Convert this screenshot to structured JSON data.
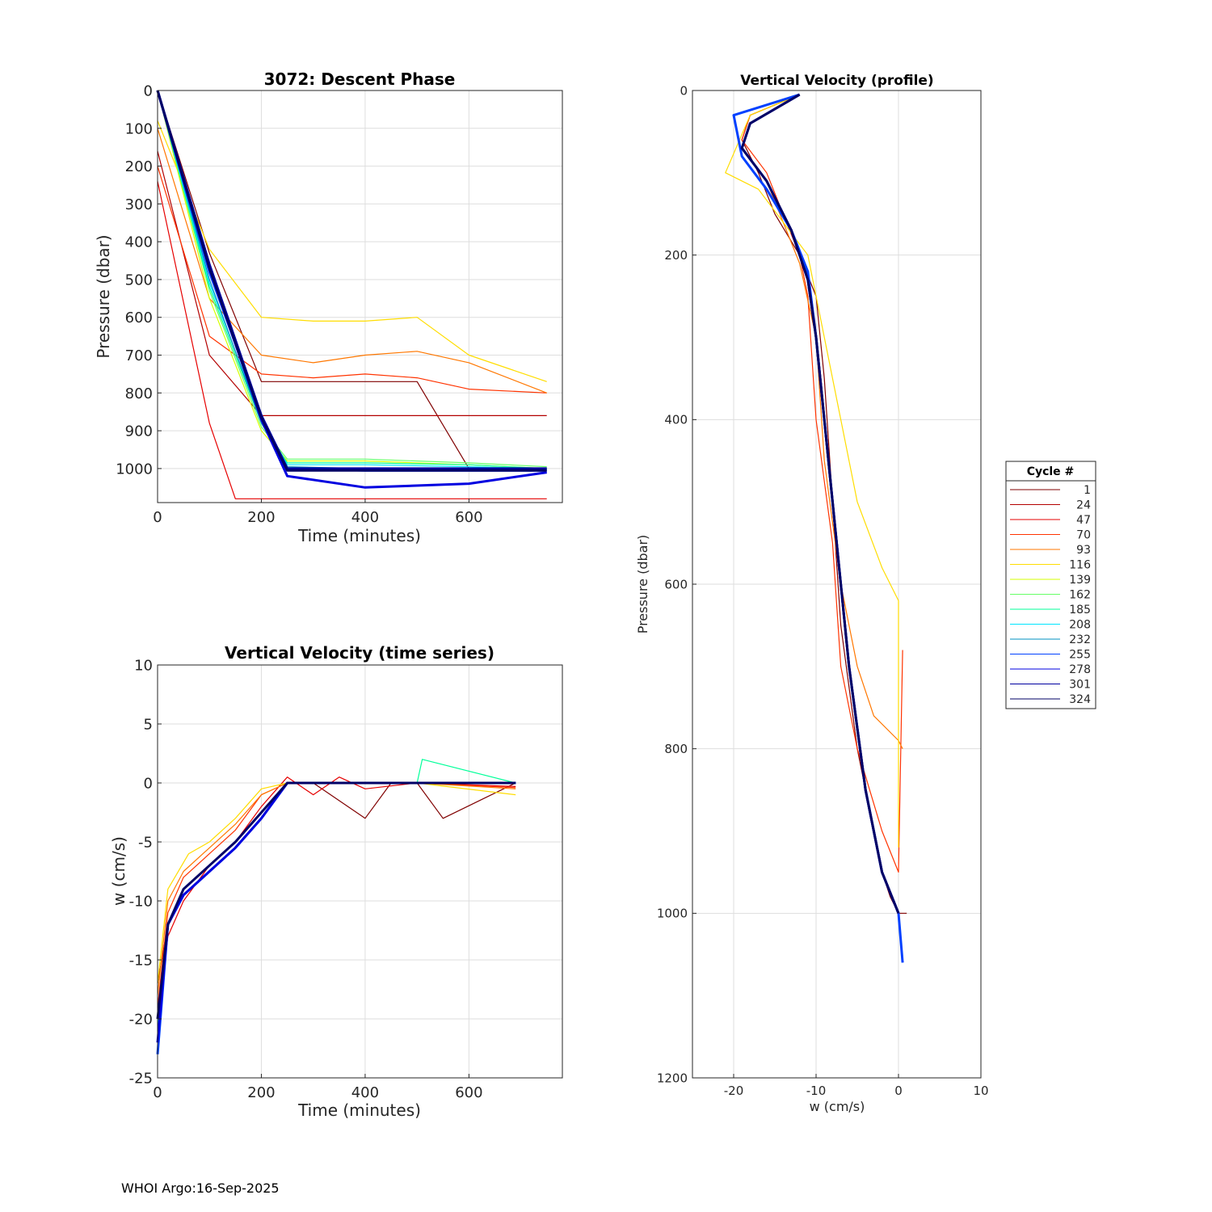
{
  "footer": "WHOI Argo:16-Sep-2025",
  "legend": {
    "title": "Cycle #",
    "entries": [
      "1",
      "24",
      "47",
      "70",
      "93",
      "116",
      "139",
      "162",
      "185",
      "208",
      "232",
      "255",
      "278",
      "301",
      "324"
    ],
    "colors": [
      "#800000",
      "#b30000",
      "#e60000",
      "#ff3300",
      "#ff7700",
      "#ffdd00",
      "#d6ff00",
      "#66ff66",
      "#00ff99",
      "#00e5ff",
      "#0090c0",
      "#0040ff",
      "#0000e0",
      "#0000a0",
      "#000066"
    ]
  },
  "chart_data": [
    {
      "id": "descent",
      "type": "line",
      "title": "3072: Descent Phase",
      "xlabel": "Time (minutes)",
      "ylabel": "Pressure (dbar)",
      "xlim": [
        0,
        780
      ],
      "ylim": [
        1090,
        0
      ],
      "xticks": [
        "0",
        "200",
        "400",
        "600"
      ],
      "yticks": [
        "0",
        "100",
        "200",
        "300",
        "400",
        "500",
        "600",
        "700",
        "800",
        "900",
        "1000"
      ],
      "grid": true,
      "series": [
        {
          "name": "1",
          "color": "#800000",
          "x": [
            0,
            100,
            200,
            300,
            400,
            500,
            600,
            750
          ],
          "y": [
            0,
            430,
            770,
            770,
            770,
            770,
            1000,
            1000
          ]
        },
        {
          "name": "24",
          "color": "#b30000",
          "x": [
            0,
            100,
            200,
            300,
            400,
            500,
            600,
            750
          ],
          "y": [
            160,
            700,
            860,
            860,
            860,
            860,
            860,
            860
          ]
        },
        {
          "name": "47",
          "color": "#e60000",
          "x": [
            0,
            100,
            150,
            200,
            300,
            400,
            500,
            600,
            750
          ],
          "y": [
            240,
            880,
            1080,
            1080,
            1080,
            1080,
            1080,
            1080,
            1080
          ]
        },
        {
          "name": "70",
          "color": "#ff3300",
          "x": [
            0,
            100,
            200,
            300,
            400,
            500,
            600,
            750
          ],
          "y": [
            200,
            650,
            750,
            760,
            750,
            760,
            790,
            800
          ]
        },
        {
          "name": "93",
          "color": "#ff7700",
          "x": [
            0,
            100,
            200,
            300,
            400,
            500,
            600,
            750
          ],
          "y": [
            100,
            550,
            700,
            720,
            700,
            690,
            720,
            800
          ]
        },
        {
          "name": "116",
          "color": "#ffdd00",
          "x": [
            0,
            100,
            200,
            300,
            400,
            500,
            600,
            750
          ],
          "y": [
            80,
            420,
            600,
            610,
            610,
            600,
            700,
            770
          ]
        },
        {
          "name": "139",
          "color": "#d6ff00",
          "x": [
            0,
            100,
            200,
            250,
            400,
            600,
            750
          ],
          "y": [
            0,
            550,
            900,
            980,
            980,
            990,
            1000
          ]
        },
        {
          "name": "162",
          "color": "#66ff66",
          "x": [
            0,
            100,
            200,
            250,
            400,
            600,
            750
          ],
          "y": [
            0,
            530,
            890,
            975,
            975,
            985,
            995
          ]
        },
        {
          "name": "185",
          "color": "#00ff99",
          "x": [
            0,
            100,
            200,
            250,
            400,
            600,
            750
          ],
          "y": [
            0,
            520,
            880,
            985,
            985,
            990,
            1000
          ]
        },
        {
          "name": "208",
          "color": "#00e5ff",
          "x": [
            0,
            100,
            200,
            250,
            400,
            600,
            750
          ],
          "y": [
            0,
            510,
            870,
            990,
            990,
            995,
            1000
          ]
        },
        {
          "name": "232",
          "color": "#0090c0",
          "x": [
            0,
            100,
            200,
            250,
            400,
            600,
            750
          ],
          "y": [
            0,
            500,
            880,
            995,
            1000,
            1000,
            1005
          ]
        },
        {
          "name": "255",
          "color": "#0040ff",
          "x": [
            0,
            100,
            200,
            250,
            400,
            600,
            750
          ],
          "y": [
            0,
            480,
            860,
            1000,
            1005,
            1005,
            1005
          ]
        },
        {
          "name": "278",
          "color": "#0000e0",
          "x": [
            0,
            100,
            200,
            250,
            400,
            600,
            750
          ],
          "y": [
            0,
            470,
            870,
            1020,
            1050,
            1040,
            1010
          ]
        },
        {
          "name": "301",
          "color": "#0000a0",
          "x": [
            0,
            100,
            200,
            250,
            400,
            600,
            750
          ],
          "y": [
            0,
            460,
            860,
            1000,
            1000,
            1000,
            1000
          ]
        },
        {
          "name": "324",
          "color": "#000066",
          "x": [
            0,
            100,
            200,
            250,
            400,
            600,
            750
          ],
          "y": [
            0,
            470,
            865,
            1005,
            1005,
            1005,
            1005
          ]
        }
      ]
    },
    {
      "id": "wtime",
      "type": "line",
      "title": "Vertical Velocity (time series)",
      "xlabel": "Time (minutes)",
      "ylabel": "w (cm/s)",
      "xlim": [
        0,
        780
      ],
      "ylim": [
        -25,
        10
      ],
      "xticks": [
        "0",
        "200",
        "400",
        "600"
      ],
      "yticks": [
        "10",
        "5",
        "0",
        "-5",
        "-10",
        "-15",
        "-20",
        "-25"
      ],
      "grid": true,
      "series": [
        {
          "name": "1",
          "color": "#800000",
          "x": [
            0,
            20,
            50,
            100,
            150,
            200,
            250,
            300,
            400,
            450,
            500,
            550,
            690
          ],
          "y": [
            -17,
            -12,
            -9,
            -7,
            -5,
            -2.5,
            0,
            0,
            -3,
            0,
            0,
            -3,
            0
          ]
        },
        {
          "name": "47",
          "color": "#e60000",
          "x": [
            0,
            20,
            50,
            100,
            150,
            200,
            250,
            300,
            350,
            400,
            500,
            690
          ],
          "y": [
            -20,
            -13,
            -10,
            -7,
            -5,
            -2,
            0.5,
            -1,
            0.5,
            -0.5,
            0,
            -0.3
          ]
        },
        {
          "name": "70",
          "color": "#ff3300",
          "x": [
            0,
            20,
            50,
            100,
            150,
            200,
            250,
            300,
            400,
            500,
            690
          ],
          "y": [
            -19,
            -11,
            -8,
            -6,
            -4,
            -1,
            0,
            0,
            0,
            0,
            -0.4
          ]
        },
        {
          "name": "93",
          "color": "#ff7700",
          "x": [
            0,
            20,
            50,
            100,
            150,
            200,
            250,
            300,
            400,
            500,
            690
          ],
          "y": [
            -18,
            -10,
            -7.5,
            -5.5,
            -3.5,
            -1,
            0,
            0,
            0,
            0,
            -0.5
          ]
        },
        {
          "name": "116",
          "color": "#ffdd00",
          "x": [
            0,
            20,
            60,
            100,
            150,
            200,
            250,
            300,
            400,
            500,
            690
          ],
          "y": [
            -17,
            -9,
            -6,
            -5,
            -3,
            -0.5,
            0,
            0,
            0,
            0,
            -1
          ]
        },
        {
          "name": "185",
          "color": "#00ff99",
          "x": [
            0,
            20,
            50,
            100,
            150,
            200,
            250,
            300,
            400,
            500,
            510,
            690
          ],
          "y": [
            -21,
            -12,
            -9,
            -7,
            -5,
            -2.5,
            0,
            0,
            0,
            0,
            2,
            0
          ]
        },
        {
          "name": "208",
          "color": "#00e5ff",
          "x": [
            0,
            20,
            50,
            100,
            150,
            200,
            250,
            300,
            400,
            500,
            690
          ],
          "y": [
            -21,
            -12,
            -9,
            -7,
            -5,
            -2.5,
            0,
            0,
            0,
            0,
            0
          ]
        },
        {
          "name": "255",
          "color": "#0040ff",
          "x": [
            0,
            20,
            50,
            100,
            150,
            200,
            250,
            300,
            400,
            500,
            690
          ],
          "y": [
            -23,
            -12,
            -9.5,
            -7.5,
            -5.5,
            -3,
            0,
            0,
            0,
            0,
            0
          ]
        },
        {
          "name": "278",
          "color": "#0000e0",
          "x": [
            0,
            20,
            50,
            100,
            150,
            200,
            250,
            300,
            400,
            500,
            690
          ],
          "y": [
            -22,
            -12,
            -9.5,
            -7.5,
            -5.5,
            -3,
            0,
            0,
            0,
            0,
            0
          ]
        },
        {
          "name": "324",
          "color": "#000066",
          "x": [
            0,
            20,
            50,
            100,
            150,
            200,
            250,
            300,
            400,
            500,
            690
          ],
          "y": [
            -20,
            -12,
            -9,
            -7,
            -5,
            -2.5,
            0,
            0,
            0,
            0,
            0
          ]
        }
      ]
    },
    {
      "id": "wprofile",
      "type": "line",
      "title": "Vertical Velocity (profile)",
      "xlabel": "w (cm/s)",
      "ylabel": "Pressure (dbar)",
      "xlim": [
        -25,
        10
      ],
      "ylim": [
        1200,
        0
      ],
      "xticks": [
        "-20",
        "-10",
        "0",
        "10"
      ],
      "yticks": [
        "0",
        "200",
        "400",
        "600",
        "800",
        "1000",
        "1200"
      ],
      "grid": true,
      "series": [
        {
          "name": "1",
          "color": "#800000",
          "x": [
            -12,
            -18,
            -19,
            -17,
            -15,
            -12,
            -10,
            -9,
            -8,
            -7,
            -5,
            -3,
            -2,
            -1,
            0,
            1
          ],
          "y": [
            5,
            30,
            60,
            100,
            150,
            200,
            250,
            350,
            500,
            650,
            800,
            900,
            950,
            980,
            1000,
            1000
          ]
        },
        {
          "name": "70",
          "color": "#ff3300",
          "x": [
            -12,
            -18,
            -19,
            -16,
            -14,
            -12,
            -11,
            -10,
            -8,
            -7,
            -5,
            -2,
            0,
            0.5
          ],
          "y": [
            5,
            30,
            60,
            100,
            150,
            200,
            250,
            400,
            550,
            700,
            800,
            900,
            950,
            680
          ]
        },
        {
          "name": "93",
          "color": "#ff7700",
          "x": [
            -12,
            -18,
            -19,
            -16,
            -14,
            -12,
            -10,
            -9,
            -7,
            -5,
            -3,
            0,
            0.5
          ],
          "y": [
            5,
            40,
            70,
            110,
            160,
            210,
            300,
            450,
            600,
            700,
            760,
            790,
            800
          ]
        },
        {
          "name": "116",
          "color": "#ffdd00",
          "x": [
            -12,
            -18,
            -21,
            -17,
            -11,
            -9,
            -7,
            -5,
            -2,
            0,
            0
          ],
          "y": [
            5,
            30,
            100,
            120,
            200,
            300,
            400,
            500,
            580,
            620,
            920
          ]
        },
        {
          "name": "162",
          "color": "#66ff66",
          "x": [
            -12,
            -18,
            -19,
            -16,
            -13,
            -11,
            -10,
            -8,
            -6,
            -4,
            -2,
            0
          ],
          "y": [
            5,
            40,
            70,
            110,
            170,
            230,
            300,
            500,
            700,
            850,
            950,
            1000
          ]
        },
        {
          "name": "208",
          "color": "#00e5ff",
          "x": [
            -12,
            -18,
            -19,
            -16,
            -13,
            -11,
            -10,
            -8,
            -6,
            -4,
            -2,
            0
          ],
          "y": [
            5,
            40,
            70,
            110,
            170,
            230,
            300,
            500,
            700,
            850,
            950,
            1000
          ]
        },
        {
          "name": "255",
          "color": "#0040ff",
          "x": [
            -12,
            -20,
            -19,
            -16,
            -13,
            -11,
            -10,
            -8,
            -6,
            -4,
            -2,
            0,
            0.5
          ],
          "y": [
            5,
            30,
            80,
            120,
            170,
            220,
            300,
            500,
            700,
            850,
            950,
            1000,
            1060
          ]
        },
        {
          "name": "301",
          "color": "#0000a0",
          "x": [
            -12,
            -18,
            -19,
            -16,
            -13,
            -11,
            -10,
            -8,
            -6,
            -4,
            -2,
            0
          ],
          "y": [
            5,
            40,
            70,
            110,
            170,
            230,
            300,
            500,
            700,
            850,
            950,
            1000
          ]
        },
        {
          "name": "324",
          "color": "#000066",
          "x": [
            -12,
            -18,
            -19,
            -16,
            -13,
            -11,
            -10,
            -8,
            -6,
            -4,
            -2,
            0
          ],
          "y": [
            5,
            40,
            70,
            110,
            170,
            230,
            300,
            500,
            700,
            850,
            950,
            1000
          ]
        }
      ]
    }
  ]
}
